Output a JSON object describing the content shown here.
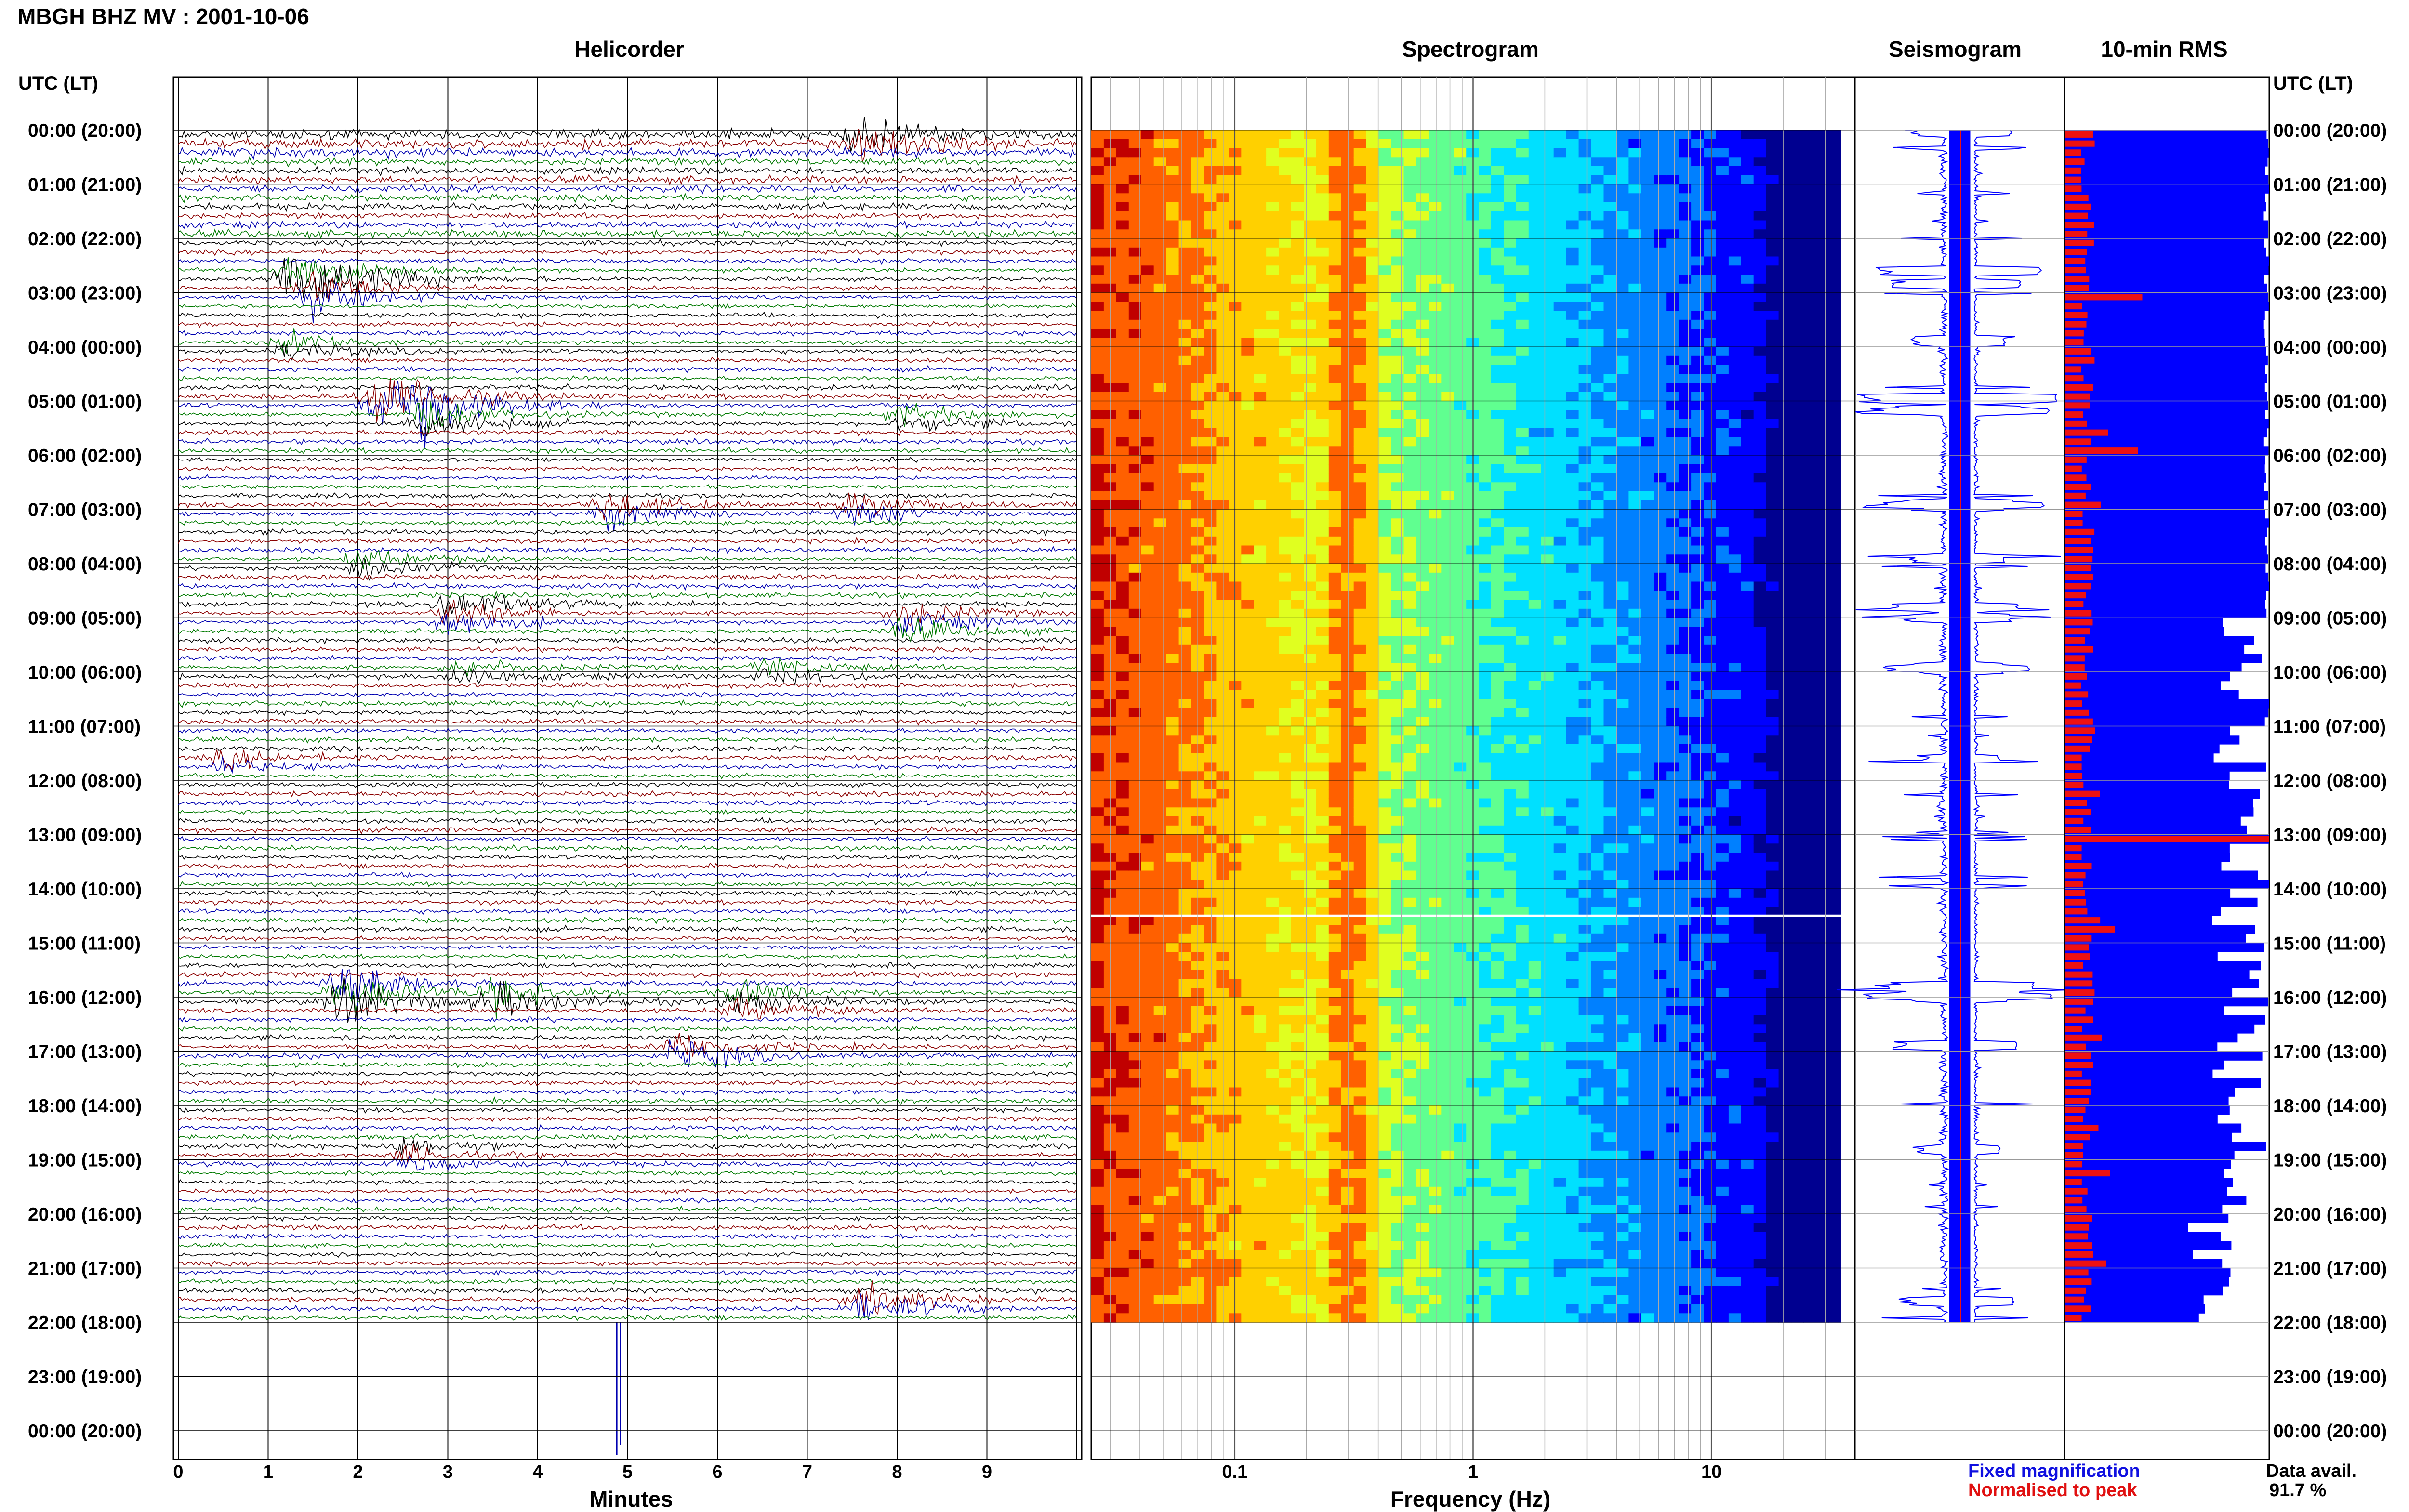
{
  "page_title": "MBGH BHZ MV : 2001-10-06",
  "panels": {
    "helicorder": "Helicorder",
    "spectrogram": "Spectrogram",
    "seismogram": "Seismogram",
    "rms": "10-min RMS"
  },
  "time_axis_label": "UTC (LT)",
  "time_labels": [
    "00:00 (20:00)",
    "01:00 (21:00)",
    "02:00 (22:00)",
    "03:00 (23:00)",
    "04:00 (00:00)",
    "05:00 (01:00)",
    "06:00 (02:00)",
    "07:00 (03:00)",
    "08:00 (04:00)",
    "09:00 (05:00)",
    "10:00 (06:00)",
    "11:00 (07:00)",
    "12:00 (08:00)",
    "13:00 (09:00)",
    "14:00 (10:00)",
    "15:00 (11:00)",
    "16:00 (12:00)",
    "17:00 (13:00)",
    "18:00 (14:00)",
    "19:00 (15:00)",
    "20:00 (16:00)",
    "21:00 (17:00)",
    "22:00 (18:00)",
    "23:00 (19:00)",
    "00:00 (20:00)"
  ],
  "helicorder_xlabel": "Minutes",
  "helicorder_ticks": [
    "0",
    "1",
    "2",
    "3",
    "4",
    "5",
    "6",
    "7",
    "8",
    "9"
  ],
  "spectrogram_xlabel": "Frequency (Hz)",
  "spectrogram_ticks": [
    "0.1",
    "1",
    "10"
  ],
  "legend": {
    "fixed": "Fixed magnification",
    "normalised": "Normalised to peak",
    "fixed_color": "#1010e0",
    "normalised_color": "#e01010"
  },
  "data_avail_label": "Data avail.",
  "data_avail_value": "91.7 %",
  "colors": {
    "trace_cycle": [
      "#000000",
      "#8b0000",
      "#0000b0",
      "#007a00"
    ],
    "rms_fixed": "#0000ff",
    "rms_normalised": "#ee1111"
  },
  "chart_data": {
    "type": "heatmap",
    "title": "MBGH BHZ MV : 2001-10-06",
    "time_range_hours_utc": [
      0,
      24
    ],
    "data_end_hour_utc": 22,
    "data_available_percent": 91.7,
    "helicorder": {
      "minutes_per_line": 10,
      "xlim_minutes": [
        0,
        10
      ],
      "events": [
        {
          "hour": 0.05,
          "minute": 7.5,
          "amp": 1.2
        },
        {
          "hour": 2.6,
          "minute": 1.2,
          "amp": 2.2
        },
        {
          "hour": 2.85,
          "minute": 1.5,
          "amp": 1.5
        },
        {
          "hour": 3.9,
          "minute": 1.2,
          "amp": 1.0
        },
        {
          "hour": 4.95,
          "minute": 2.2,
          "amp": 2.8
        },
        {
          "hour": 5.15,
          "minute": 2.7,
          "amp": 1.5
        },
        {
          "hour": 5.2,
          "minute": 8.0,
          "amp": 1.0
        },
        {
          "hour": 6.9,
          "minute": 4.7,
          "amp": 1.3
        },
        {
          "hour": 6.95,
          "minute": 7.5,
          "amp": 1.0
        },
        {
          "hour": 7.9,
          "minute": 2.0,
          "amp": 1.0
        },
        {
          "hour": 8.8,
          "minute": 3.0,
          "amp": 1.4
        },
        {
          "hour": 9.0,
          "minute": 8.0,
          "amp": 1.2
        },
        {
          "hour": 9.9,
          "minute": 3.1,
          "amp": 0.9
        },
        {
          "hour": 9.95,
          "minute": 6.5,
          "amp": 0.9
        },
        {
          "hour": 11.6,
          "minute": 0.5,
          "amp": 0.8
        },
        {
          "hour": 15.8,
          "minute": 1.8,
          "amp": 2.0
        },
        {
          "hour": 15.95,
          "minute": 3.5,
          "amp": 1.5
        },
        {
          "hour": 16.0,
          "minute": 6.2,
          "amp": 1.1
        },
        {
          "hour": 16.9,
          "minute": 5.5,
          "amp": 1.4
        },
        {
          "hour": 18.8,
          "minute": 2.5,
          "amp": 0.8
        },
        {
          "hour": 21.6,
          "minute": 7.6,
          "amp": 1.3
        }
      ]
    },
    "spectrogram": {
      "x_scale": "log",
      "xlim_hz": [
        0.025,
        40
      ],
      "peak_hz": 0.3,
      "secondary_band_hz": [
        2,
        5
      ],
      "colormap": [
        "#000090",
        "#0000ff",
        "#0080ff",
        "#00e0ff",
        "#60ff90",
        "#e0ff20",
        "#ffd000",
        "#ff6000",
        "#c00000"
      ]
    },
    "rms_10min": {
      "interval_minutes": 10,
      "note_bins": 132,
      "fixed_level_start": 0.68,
      "fixed_level_end": 0.72,
      "spike_hour": 13.0
    }
  }
}
